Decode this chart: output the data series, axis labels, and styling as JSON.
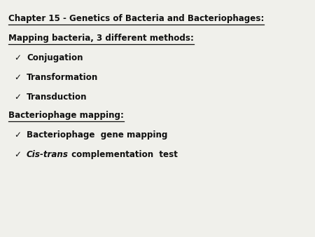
{
  "background_color": "#f0f0eb",
  "title_line": "Chapter 15 - Genetics of Bacteria and Bacteriophages:",
  "section1_header": "Mapping bacteria, 3 different methods:",
  "section1_items": [
    "Conjugation",
    "Transformation",
    "Transduction"
  ],
  "section2_header": "Bacteriophage mapping:",
  "section2_item1": "Bacteriophage  gene mapping",
  "section2_item2_italic": "Cis-trans",
  "section2_item2_rest": " complementation  test",
  "text_color": "#111111",
  "checkmark": "✓",
  "yt_title": 20,
  "yt_sec1": 48,
  "yt_item1": 76,
  "yt_item2": 104,
  "yt_item3": 132,
  "yt_sec2": 158,
  "yt_item4": 186,
  "yt_item5": 214,
  "xl": 12,
  "xck": 20,
  "xit": 38,
  "fs": 8.6
}
